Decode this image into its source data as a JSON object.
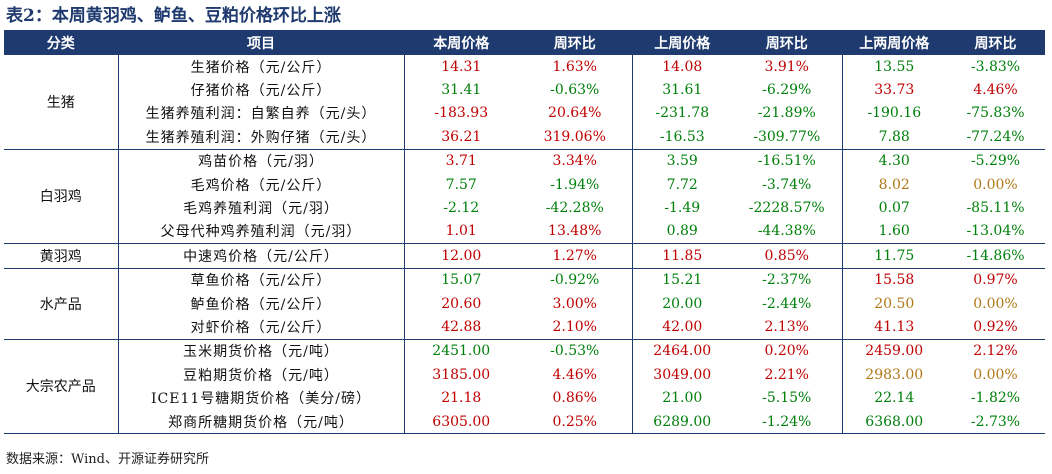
{
  "title": "表2：本周黄羽鸡、鲈鱼、豆粕价格环比上涨",
  "source": "数据来源：Wind、开源证券研究所",
  "headers": {
    "category": "分类",
    "item": "项目",
    "this_week_price": "本周价格",
    "wow_1": "周环比",
    "last_week_price": "上周价格",
    "wow_2": "周环比",
    "two_weeks_price": "上两周价格",
    "wow_3": "周环比"
  },
  "colors": {
    "header_bg": "#1f3a6e",
    "red": "#c00000",
    "green": "#00800a",
    "brown": "#b07818"
  },
  "groups": [
    {
      "name": "生猪",
      "rows": [
        {
          "item": "生猪价格（元/公斤）",
          "cells": [
            {
              "v": "14.31",
              "c": "red"
            },
            {
              "v": "1.63%",
              "c": "red"
            },
            {
              "v": "14.08",
              "c": "red"
            },
            {
              "v": "3.91%",
              "c": "red"
            },
            {
              "v": "13.55",
              "c": "green"
            },
            {
              "v": "-3.83%",
              "c": "green"
            }
          ]
        },
        {
          "item": "仔猪价格（元/公斤）",
          "cells": [
            {
              "v": "31.41",
              "c": "green"
            },
            {
              "v": "-0.63%",
              "c": "green"
            },
            {
              "v": "31.61",
              "c": "green"
            },
            {
              "v": "-6.29%",
              "c": "green"
            },
            {
              "v": "33.73",
              "c": "red"
            },
            {
              "v": "4.46%",
              "c": "red"
            }
          ]
        },
        {
          "item": "生猪养殖利润：自繁自养（元/头）",
          "cells": [
            {
              "v": "-183.93",
              "c": "red"
            },
            {
              "v": "20.64%",
              "c": "red"
            },
            {
              "v": "-231.78",
              "c": "green"
            },
            {
              "v": "-21.89%",
              "c": "green"
            },
            {
              "v": "-190.16",
              "c": "green"
            },
            {
              "v": "-75.83%",
              "c": "green"
            }
          ]
        },
        {
          "item": "生猪养殖利润：外购仔猪（元/头）",
          "cells": [
            {
              "v": "36.21",
              "c": "red"
            },
            {
              "v": "319.06%",
              "c": "red"
            },
            {
              "v": "-16.53",
              "c": "green"
            },
            {
              "v": "-309.77%",
              "c": "green"
            },
            {
              "v": "7.88",
              "c": "green"
            },
            {
              "v": "-77.24%",
              "c": "green"
            }
          ]
        }
      ]
    },
    {
      "name": "白羽鸡",
      "rows": [
        {
          "item": "鸡苗价格（元/羽）",
          "cells": [
            {
              "v": "3.71",
              "c": "red"
            },
            {
              "v": "3.34%",
              "c": "red"
            },
            {
              "v": "3.59",
              "c": "green"
            },
            {
              "v": "-16.51%",
              "c": "green"
            },
            {
              "v": "4.30",
              "c": "green"
            },
            {
              "v": "-5.29%",
              "c": "green"
            }
          ]
        },
        {
          "item": "毛鸡价格（元/公斤）",
          "cells": [
            {
              "v": "7.57",
              "c": "green"
            },
            {
              "v": "-1.94%",
              "c": "green"
            },
            {
              "v": "7.72",
              "c": "green"
            },
            {
              "v": "-3.74%",
              "c": "green"
            },
            {
              "v": "8.02",
              "c": "brown"
            },
            {
              "v": "0.00%",
              "c": "brown"
            }
          ]
        },
        {
          "item": "毛鸡养殖利润（元/羽）",
          "cells": [
            {
              "v": "-2.12",
              "c": "green"
            },
            {
              "v": "-42.28%",
              "c": "green"
            },
            {
              "v": "-1.49",
              "c": "green"
            },
            {
              "v": "-2228.57%",
              "c": "green"
            },
            {
              "v": "0.07",
              "c": "green"
            },
            {
              "v": "-85.11%",
              "c": "green"
            }
          ]
        },
        {
          "item": "父母代种鸡养殖利润（元/羽）",
          "cells": [
            {
              "v": "1.01",
              "c": "red"
            },
            {
              "v": "13.48%",
              "c": "red"
            },
            {
              "v": "0.89",
              "c": "green"
            },
            {
              "v": "-44.38%",
              "c": "green"
            },
            {
              "v": "1.60",
              "c": "green"
            },
            {
              "v": "-13.04%",
              "c": "green"
            }
          ]
        }
      ]
    },
    {
      "name": "黄羽鸡",
      "rows": [
        {
          "item": "中速鸡价格（元/公斤）",
          "cells": [
            {
              "v": "12.00",
              "c": "red"
            },
            {
              "v": "1.27%",
              "c": "red"
            },
            {
              "v": "11.85",
              "c": "red"
            },
            {
              "v": "0.85%",
              "c": "red"
            },
            {
              "v": "11.75",
              "c": "green"
            },
            {
              "v": "-14.86%",
              "c": "green"
            }
          ]
        }
      ]
    },
    {
      "name": "水产品",
      "rows": [
        {
          "item": "草鱼价格（元/公斤）",
          "cells": [
            {
              "v": "15.07",
              "c": "green"
            },
            {
              "v": "-0.92%",
              "c": "green"
            },
            {
              "v": "15.21",
              "c": "green"
            },
            {
              "v": "-2.37%",
              "c": "green"
            },
            {
              "v": "15.58",
              "c": "red"
            },
            {
              "v": "0.97%",
              "c": "red"
            }
          ]
        },
        {
          "item": "鲈鱼价格（元/公斤）",
          "cells": [
            {
              "v": "20.60",
              "c": "red"
            },
            {
              "v": "3.00%",
              "c": "red"
            },
            {
              "v": "20.00",
              "c": "green"
            },
            {
              "v": "-2.44%",
              "c": "green"
            },
            {
              "v": "20.50",
              "c": "brown"
            },
            {
              "v": "0.00%",
              "c": "brown"
            }
          ]
        },
        {
          "item": "对虾价格（元/公斤）",
          "cells": [
            {
              "v": "42.88",
              "c": "red"
            },
            {
              "v": "2.10%",
              "c": "red"
            },
            {
              "v": "42.00",
              "c": "red"
            },
            {
              "v": "2.13%",
              "c": "red"
            },
            {
              "v": "41.13",
              "c": "red"
            },
            {
              "v": "0.92%",
              "c": "red"
            }
          ]
        }
      ]
    },
    {
      "name": "大宗农产品",
      "rows": [
        {
          "item": "玉米期货价格（元/吨）",
          "cells": [
            {
              "v": "2451.00",
              "c": "green"
            },
            {
              "v": "-0.53%",
              "c": "green"
            },
            {
              "v": "2464.00",
              "c": "red"
            },
            {
              "v": "0.20%",
              "c": "red"
            },
            {
              "v": "2459.00",
              "c": "red"
            },
            {
              "v": "2.12%",
              "c": "red"
            }
          ]
        },
        {
          "item": "豆粕期货价格（元/吨）",
          "cells": [
            {
              "v": "3185.00",
              "c": "red"
            },
            {
              "v": "4.46%",
              "c": "red"
            },
            {
              "v": "3049.00",
              "c": "red"
            },
            {
              "v": "2.21%",
              "c": "red"
            },
            {
              "v": "2983.00",
              "c": "brown"
            },
            {
              "v": "0.00%",
              "c": "brown"
            }
          ]
        },
        {
          "item": "ICE11号糖期货价格（美分/磅）",
          "cells": [
            {
              "v": "21.18",
              "c": "red"
            },
            {
              "v": "0.86%",
              "c": "red"
            },
            {
              "v": "21.00",
              "c": "green"
            },
            {
              "v": "-5.15%",
              "c": "green"
            },
            {
              "v": "22.14",
              "c": "green"
            },
            {
              "v": "-1.82%",
              "c": "green"
            }
          ]
        },
        {
          "item": "郑商所糖期货价格（元/吨）",
          "cells": [
            {
              "v": "6305.00",
              "c": "red"
            },
            {
              "v": "0.25%",
              "c": "red"
            },
            {
              "v": "6289.00",
              "c": "green"
            },
            {
              "v": "-1.24%",
              "c": "green"
            },
            {
              "v": "6368.00",
              "c": "green"
            },
            {
              "v": "-2.73%",
              "c": "green"
            }
          ]
        }
      ]
    }
  ]
}
